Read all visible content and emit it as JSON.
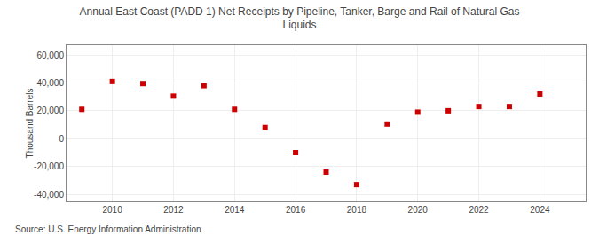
{
  "chart_data": {
    "type": "scatter",
    "title": "Annual East Coast (PADD 1) Net Receipts by Pipeline, Tanker, Barge and Rail of Natural Gas\nLiquids",
    "ylabel": "Thousand Barrels",
    "annotations": [
      "Source: U.S. Energy Information Administration"
    ],
    "x": [
      2009,
      2010,
      2011,
      2012,
      2013,
      2014,
      2015,
      2016,
      2017,
      2018,
      2019,
      2020,
      2021,
      2022,
      2023,
      2024
    ],
    "values": [
      21000,
      41000,
      39500,
      30500,
      38000,
      21000,
      8000,
      -10000,
      -24000,
      -33000,
      10500,
      19000,
      20000,
      23000,
      23000,
      32000
    ],
    "color": "#cc0000",
    "marker": "square",
    "xlim": [
      2008.5,
      2025.5
    ],
    "xticks": [
      2010,
      2012,
      2014,
      2016,
      2018,
      2020,
      2022,
      2024
    ],
    "ylim": [
      -45000,
      67000
    ],
    "yticks": [
      {
        "value": -40000,
        "label": "-40,000"
      },
      {
        "value": -20000,
        "label": "-20,000"
      },
      0,
      {
        "value": 20000,
        "label": "20,000"
      },
      {
        "value": 40000,
        "label": "40,000"
      },
      {
        "value": 60000,
        "label": "60,000"
      }
    ],
    "grid": true
  }
}
